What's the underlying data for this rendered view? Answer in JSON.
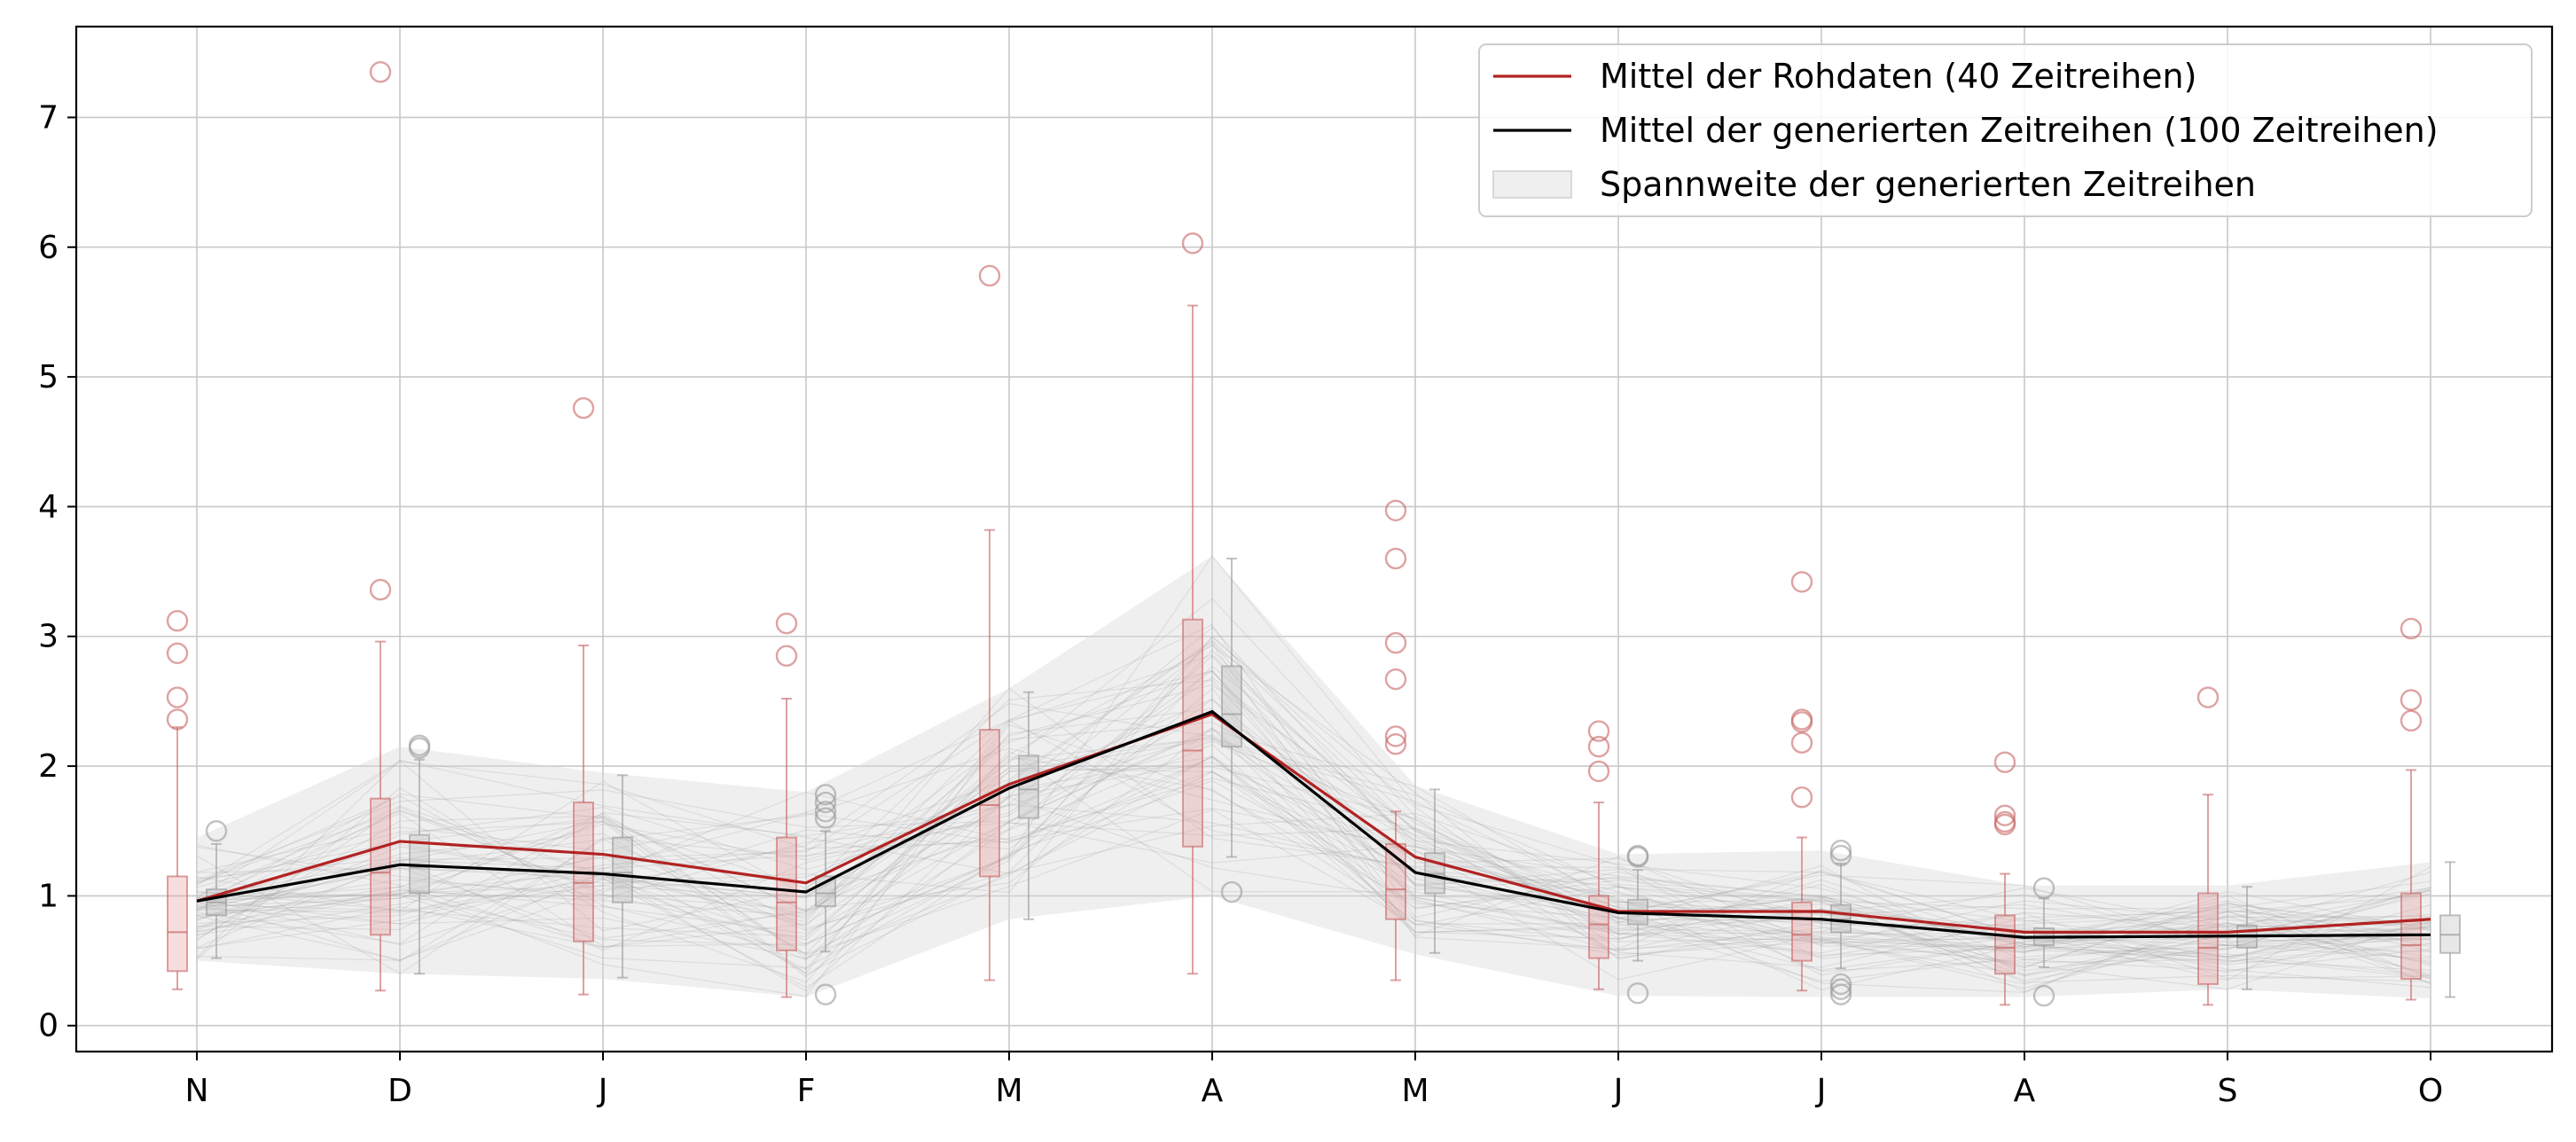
{
  "chart_data": {
    "type": "line",
    "categories": [
      "N",
      "D",
      "J",
      "F",
      "M",
      "A",
      "M",
      "J",
      "J",
      "A",
      "S",
      "O"
    ],
    "ylim": [
      -0.2,
      7.7
    ],
    "yticks": [
      0,
      1,
      2,
      3,
      4,
      5,
      6,
      7
    ],
    "grid": true,
    "legend_position": "top-right",
    "legend": [
      {
        "label": "Mittel der Rohdaten (40 Zeitreihen)",
        "kind": "line",
        "color": "#b22222"
      },
      {
        "label": "Mittel der generierten Zeitreihen (100 Zeitreihen)",
        "kind": "line",
        "color": "#000000"
      },
      {
        "label": "Spannweite der generierten Zeitreihen",
        "kind": "patch",
        "color": "#d9d9d9"
      }
    ],
    "series": [
      {
        "name": "Mittel der Rohdaten (40 Zeitreihen)",
        "color": "#b22222",
        "values": [
          0.96,
          1.42,
          1.32,
          1.1,
          1.86,
          2.4,
          1.3,
          0.88,
          0.88,
          0.72,
          0.72,
          0.82
        ]
      },
      {
        "name": "Mittel der generierten Zeitreihen (100 Zeitreihen)",
        "color": "#000000",
        "values": [
          0.96,
          1.24,
          1.17,
          1.03,
          1.83,
          2.42,
          1.18,
          0.87,
          0.82,
          0.68,
          0.69,
          0.7
        ]
      }
    ],
    "range_band": {
      "name": "Spannweite der generierten Zeitreihen",
      "lower": [
        0.5,
        0.4,
        0.36,
        0.22,
        0.82,
        1.0,
        0.55,
        0.23,
        0.22,
        0.22,
        0.28,
        0.21
      ],
      "upper": [
        1.45,
        2.15,
        1.95,
        1.8,
        2.6,
        3.62,
        1.85,
        1.32,
        1.35,
        1.08,
        1.08,
        1.26
      ]
    },
    "boxplots_raw": [
      {
        "q1": 0.42,
        "median": 0.72,
        "q3": 1.15,
        "wlo": 0.28,
        "whi": 2.3,
        "outliers": [
          2.36,
          2.53,
          2.87,
          3.12
        ]
      },
      {
        "q1": 0.7,
        "median": 1.18,
        "q3": 1.75,
        "wlo": 0.27,
        "whi": 2.96,
        "outliers": [
          3.36,
          7.35
        ]
      },
      {
        "q1": 0.65,
        "median": 1.1,
        "q3": 1.72,
        "wlo": 0.24,
        "whi": 2.93,
        "outliers": [
          4.76
        ]
      },
      {
        "q1": 0.58,
        "median": 0.95,
        "q3": 1.45,
        "wlo": 0.22,
        "whi": 2.52,
        "outliers": [
          2.85,
          3.1
        ]
      },
      {
        "q1": 1.15,
        "median": 1.7,
        "q3": 2.28,
        "wlo": 0.35,
        "whi": 3.82,
        "outliers": [
          5.78
        ]
      },
      {
        "q1": 1.38,
        "median": 2.12,
        "q3": 3.13,
        "wlo": 0.4,
        "whi": 5.55,
        "outliers": [
          6.03
        ]
      },
      {
        "q1": 0.82,
        "median": 1.05,
        "q3": 1.4,
        "wlo": 0.35,
        "whi": 1.65,
        "outliers": [
          2.17,
          2.23,
          2.67,
          2.95,
          3.6,
          3.97
        ]
      },
      {
        "q1": 0.52,
        "median": 0.78,
        "q3": 1.0,
        "wlo": 0.28,
        "whi": 1.72,
        "outliers": [
          1.96,
          2.15,
          2.27
        ]
      },
      {
        "q1": 0.5,
        "median": 0.7,
        "q3": 0.95,
        "wlo": 0.27,
        "whi": 1.45,
        "outliers": [
          1.76,
          2.18,
          2.34,
          2.36,
          3.42
        ]
      },
      {
        "q1": 0.4,
        "median": 0.6,
        "q3": 0.85,
        "wlo": 0.16,
        "whi": 1.17,
        "outliers": [
          1.55,
          1.57,
          1.62,
          2.03
        ]
      },
      {
        "q1": 0.32,
        "median": 0.6,
        "q3": 1.02,
        "wlo": 0.16,
        "whi": 1.78,
        "outliers": [
          2.53
        ]
      },
      {
        "q1": 0.36,
        "median": 0.62,
        "q3": 1.02,
        "wlo": 0.2,
        "whi": 1.97,
        "outliers": [
          2.35,
          2.51,
          3.06
        ]
      }
    ],
    "boxplots_generated": [
      {
        "q1": 0.85,
        "median": 0.95,
        "q3": 1.05,
        "wlo": 0.52,
        "whi": 1.4,
        "outliers": [
          1.5
        ]
      },
      {
        "q1": 1.02,
        "median": 1.22,
        "q3": 1.47,
        "wlo": 0.4,
        "whi": 2.05,
        "outliers": [
          2.14,
          2.16
        ]
      },
      {
        "q1": 0.95,
        "median": 1.18,
        "q3": 1.45,
        "wlo": 0.37,
        "whi": 1.93,
        "outliers": []
      },
      {
        "q1": 0.92,
        "median": 1.02,
        "q3": 1.15,
        "wlo": 0.57,
        "whi": 1.5,
        "outliers": [
          0.24,
          1.6,
          1.65,
          1.72,
          1.78
        ]
      },
      {
        "q1": 1.6,
        "median": 1.82,
        "q3": 2.08,
        "wlo": 0.82,
        "whi": 2.57,
        "outliers": []
      },
      {
        "q1": 2.15,
        "median": 2.4,
        "q3": 2.77,
        "wlo": 1.3,
        "whi": 3.6,
        "outliers": [
          1.03
        ]
      },
      {
        "q1": 1.02,
        "median": 1.17,
        "q3": 1.33,
        "wlo": 0.56,
        "whi": 1.82,
        "outliers": []
      },
      {
        "q1": 0.78,
        "median": 0.87,
        "q3": 0.97,
        "wlo": 0.5,
        "whi": 1.2,
        "outliers": [
          0.25,
          1.3,
          1.31
        ]
      },
      {
        "q1": 0.72,
        "median": 0.82,
        "q3": 0.93,
        "wlo": 0.44,
        "whi": 1.25,
        "outliers": [
          0.24,
          0.28,
          0.32,
          1.31,
          1.35
        ]
      },
      {
        "q1": 0.62,
        "median": 0.68,
        "q3": 0.75,
        "wlo": 0.45,
        "whi": 0.98,
        "outliers": [
          0.23,
          1.06
        ]
      },
      {
        "q1": 0.6,
        "median": 0.68,
        "q3": 0.77,
        "wlo": 0.28,
        "whi": 1.07,
        "outliers": []
      },
      {
        "q1": 0.56,
        "median": 0.7,
        "q3": 0.85,
        "wlo": 0.22,
        "whi": 1.26,
        "outliers": []
      }
    ]
  }
}
